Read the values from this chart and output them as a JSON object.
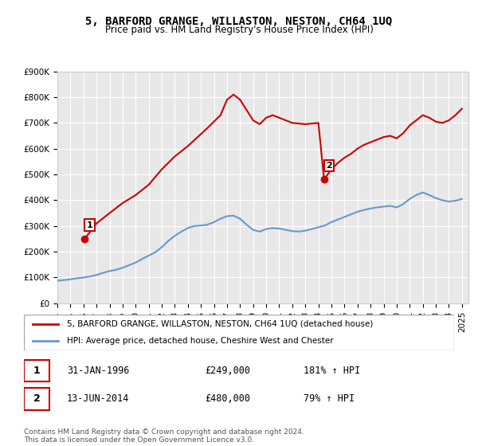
{
  "title": "5, BARFORD GRANGE, WILLASTON, NESTON, CH64 1UQ",
  "subtitle": "Price paid vs. HM Land Registry's House Price Index (HPI)",
  "ylim": [
    0,
    900000
  ],
  "yticks": [
    0,
    100000,
    200000,
    300000,
    400000,
    500000,
    600000,
    700000,
    800000,
    900000
  ],
  "xlim_start": 1994.0,
  "xlim_end": 2025.5,
  "transaction1": {
    "date": 1996.08,
    "price": 249000,
    "label": "1",
    "pct": "181%",
    "date_str": "31-JAN-1996",
    "price_str": "£249,000"
  },
  "transaction2": {
    "date": 2014.44,
    "price": 480000,
    "label": "2",
    "pct": "79%",
    "date_str": "13-JUN-2014",
    "price_str": "£480,000"
  },
  "hpi_line_color": "#6699cc",
  "price_line_color": "#cc0000",
  "marker_box_color": "#cc0000",
  "legend_label1": "5, BARFORD GRANGE, WILLASTON, NESTON, CH64 1UQ (detached house)",
  "legend_label2": "HPI: Average price, detached house, Cheshire West and Chester",
  "footer": "Contains HM Land Registry data © Crown copyright and database right 2024.\nThis data is licensed under the Open Government Licence v3.0.",
  "table_row1": "1    31-JAN-1996         £249,000         181% ↑ HPI",
  "table_row2": "2    13-JUN-2014         £480,000           79% ↑ HPI",
  "hpi_data_x": [
    1994.0,
    1994.5,
    1995.0,
    1995.5,
    1996.0,
    1996.5,
    1997.0,
    1997.5,
    1998.0,
    1998.5,
    1999.0,
    1999.5,
    2000.0,
    2000.5,
    2001.0,
    2001.5,
    2002.0,
    2002.5,
    2003.0,
    2003.5,
    2004.0,
    2004.5,
    2005.0,
    2005.5,
    2006.0,
    2006.5,
    2007.0,
    2007.5,
    2008.0,
    2008.5,
    2009.0,
    2009.5,
    2010.0,
    2010.5,
    2011.0,
    2011.5,
    2012.0,
    2012.5,
    2013.0,
    2013.5,
    2014.0,
    2014.5,
    2015.0,
    2015.5,
    2016.0,
    2016.5,
    2017.0,
    2017.5,
    2018.0,
    2018.5,
    2019.0,
    2019.5,
    2020.0,
    2020.5,
    2021.0,
    2021.5,
    2022.0,
    2022.5,
    2023.0,
    2023.5,
    2024.0,
    2024.5,
    2025.0
  ],
  "hpi_data_y": [
    88000,
    90000,
    93000,
    97000,
    100000,
    104000,
    110000,
    118000,
    125000,
    130000,
    138000,
    148000,
    158000,
    172000,
    185000,
    198000,
    218000,
    242000,
    262000,
    278000,
    292000,
    300000,
    302000,
    305000,
    315000,
    328000,
    338000,
    340000,
    328000,
    305000,
    285000,
    278000,
    288000,
    292000,
    290000,
    285000,
    280000,
    278000,
    282000,
    288000,
    295000,
    302000,
    315000,
    325000,
    335000,
    345000,
    355000,
    362000,
    368000,
    372000,
    375000,
    378000,
    372000,
    385000,
    405000,
    420000,
    430000,
    420000,
    408000,
    400000,
    395000,
    398000,
    405000
  ],
  "price_data_x": [
    1996.08,
    1996.08,
    1997.0,
    1998.0,
    1999.0,
    2000.0,
    2001.0,
    2002.0,
    2003.0,
    2004.0,
    2005.5,
    2006.5,
    2007.0,
    2007.5,
    2008.0,
    2008.5,
    2009.0,
    2009.5,
    2010.0,
    2010.5,
    2011.0,
    2012.0,
    2013.0,
    2014.0,
    2014.44,
    2014.44,
    2015.0,
    2015.5,
    2016.0,
    2016.5,
    2017.0,
    2017.5,
    2018.0,
    2018.5,
    2019.0,
    2019.5,
    2020.0,
    2020.5,
    2021.0,
    2021.5,
    2022.0,
    2022.5,
    2023.0,
    2023.5,
    2024.0,
    2024.5,
    2025.0
  ],
  "price_data_y": [
    249000,
    249000,
    310000,
    350000,
    389000,
    420000,
    460000,
    520000,
    570000,
    610000,
    680000,
    730000,
    790000,
    810000,
    790000,
    750000,
    710000,
    695000,
    720000,
    730000,
    720000,
    700000,
    695000,
    700000,
    480000,
    480000,
    520000,
    545000,
    565000,
    580000,
    600000,
    615000,
    625000,
    635000,
    645000,
    650000,
    640000,
    660000,
    690000,
    710000,
    730000,
    720000,
    705000,
    700000,
    710000,
    730000,
    755000
  ]
}
